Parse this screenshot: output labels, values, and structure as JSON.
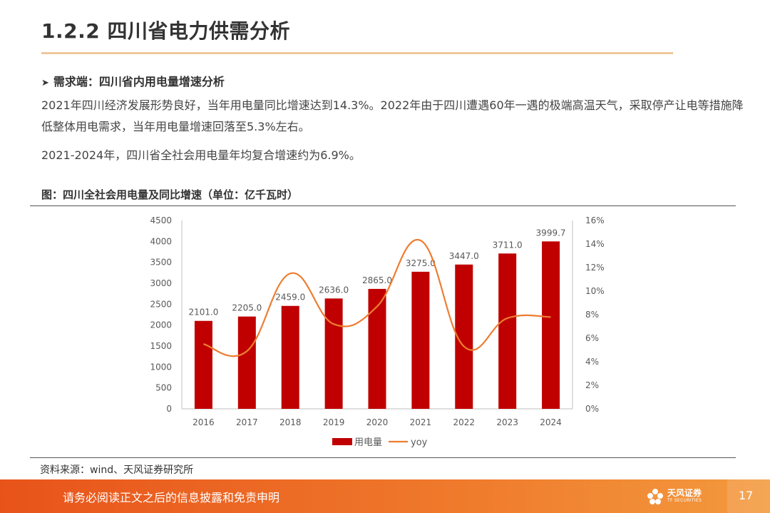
{
  "header": {
    "title": "1.2.2 四川省电力供需分析"
  },
  "section": {
    "bullet": "需求端：四川省内用电量增速分析"
  },
  "paragraphs": [
    "2021年四川经济发展形势良好，当年用电量同比增速达到14.3%。2022年由于四川遭遇60年一遇的极端高温天气，采取停产让电等措施降低整体用电需求，当年用电量增速回落至5.3%左右。",
    "2021-2024年，四川省全社会用电量年均复合增速约为6.9%。"
  ],
  "figure": {
    "title": "图：四川全社会用电量及同比增速（单位：亿千瓦时）",
    "source": "资料来源：wind、天风证券研究所"
  },
  "chart_data": {
    "type": "bar",
    "title": "",
    "categories": [
      "2016",
      "2017",
      "2018",
      "2019",
      "2020",
      "2021",
      "2022",
      "2023",
      "2024"
    ],
    "series": [
      {
        "name": "用电量",
        "type": "bar",
        "axis": "left",
        "color": "#c00000",
        "values": [
          2101.0,
          2205.0,
          2459.0,
          2636.0,
          2865.0,
          3275.0,
          3447.0,
          3711.0,
          3999.7
        ],
        "labels": [
          "2101.0",
          "2205.0",
          "2459.0",
          "2636.0",
          "2865.0",
          "3275.0",
          "3447.0",
          "3711.0",
          "3999.7"
        ]
      },
      {
        "name": "yoy",
        "type": "line",
        "axis": "right",
        "color": "#ed7d31",
        "smooth": true,
        "values": [
          5.5,
          4.9,
          11.5,
          7.2,
          8.7,
          14.3,
          5.3,
          7.7,
          7.8
        ]
      }
    ],
    "y_left": {
      "min": 0,
      "max": 4500,
      "step": 500,
      "ticks": [
        "0",
        "500",
        "1000",
        "1500",
        "2000",
        "2500",
        "3000",
        "3500",
        "4000",
        "4500"
      ]
    },
    "y_right": {
      "min": 0,
      "max": 16,
      "step": 2,
      "ticks": [
        "0%",
        "2%",
        "4%",
        "6%",
        "8%",
        "10%",
        "12%",
        "14%",
        "16%"
      ]
    },
    "grid": false,
    "legend": {
      "position": "bottom",
      "items": [
        "用电量",
        "yoy"
      ]
    }
  },
  "footer": {
    "disclaimer": "请务必阅读正文之后的信息披露和免责申明",
    "logo_cn": "天风证券",
    "logo_en": "TF SECURITIES",
    "page": "17"
  },
  "colors": {
    "accent": "#e8531a",
    "bar": "#c00000",
    "line": "#ed7d31",
    "rule": "#f0c89c"
  }
}
